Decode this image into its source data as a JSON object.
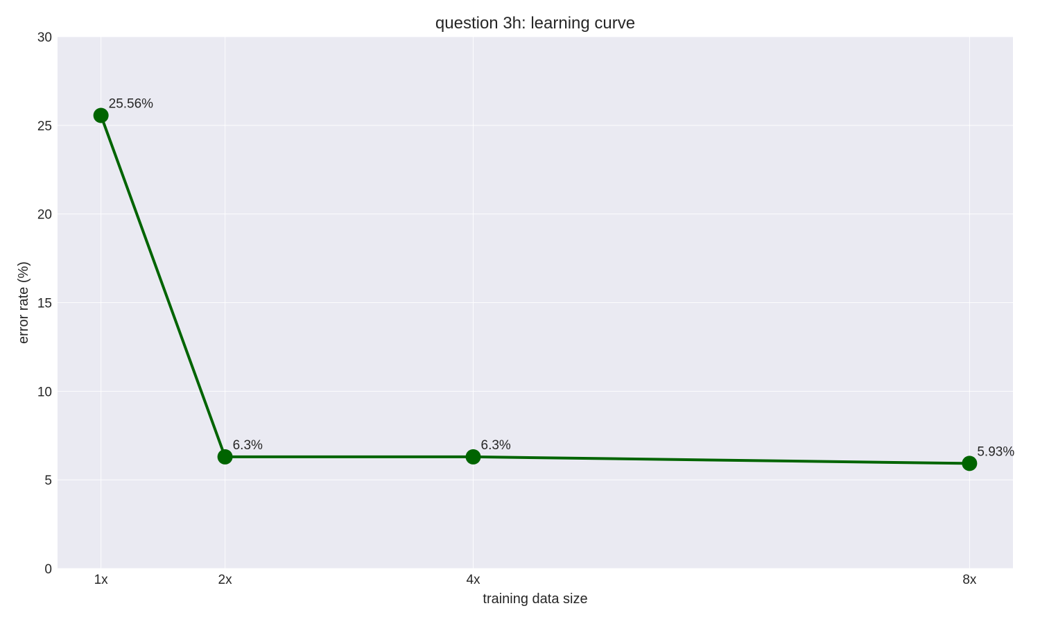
{
  "chart_data": {
    "type": "line",
    "title": "question 3h: learning curve",
    "xlabel": "training data size",
    "ylabel": "error rate (%)",
    "x": [
      1,
      2,
      4,
      8
    ],
    "x_tick_labels": [
      "1x",
      "2x",
      "4x",
      "8x"
    ],
    "x_range": [
      0.65,
      8.35
    ],
    "ylim": [
      0,
      30
    ],
    "y_ticks": [
      0,
      5,
      10,
      15,
      20,
      25,
      30
    ],
    "grid": true,
    "series": [
      {
        "values": [
          25.56,
          6.3,
          6.3,
          5.93
        ],
        "data_labels": [
          "25.56%",
          "6.3%",
          "6.3%",
          "5.93%"
        ],
        "color": "#006400"
      }
    ],
    "colors": {
      "plot_background": "#eaeaf2",
      "grid": "#ffffff",
      "line": "#006400"
    }
  }
}
